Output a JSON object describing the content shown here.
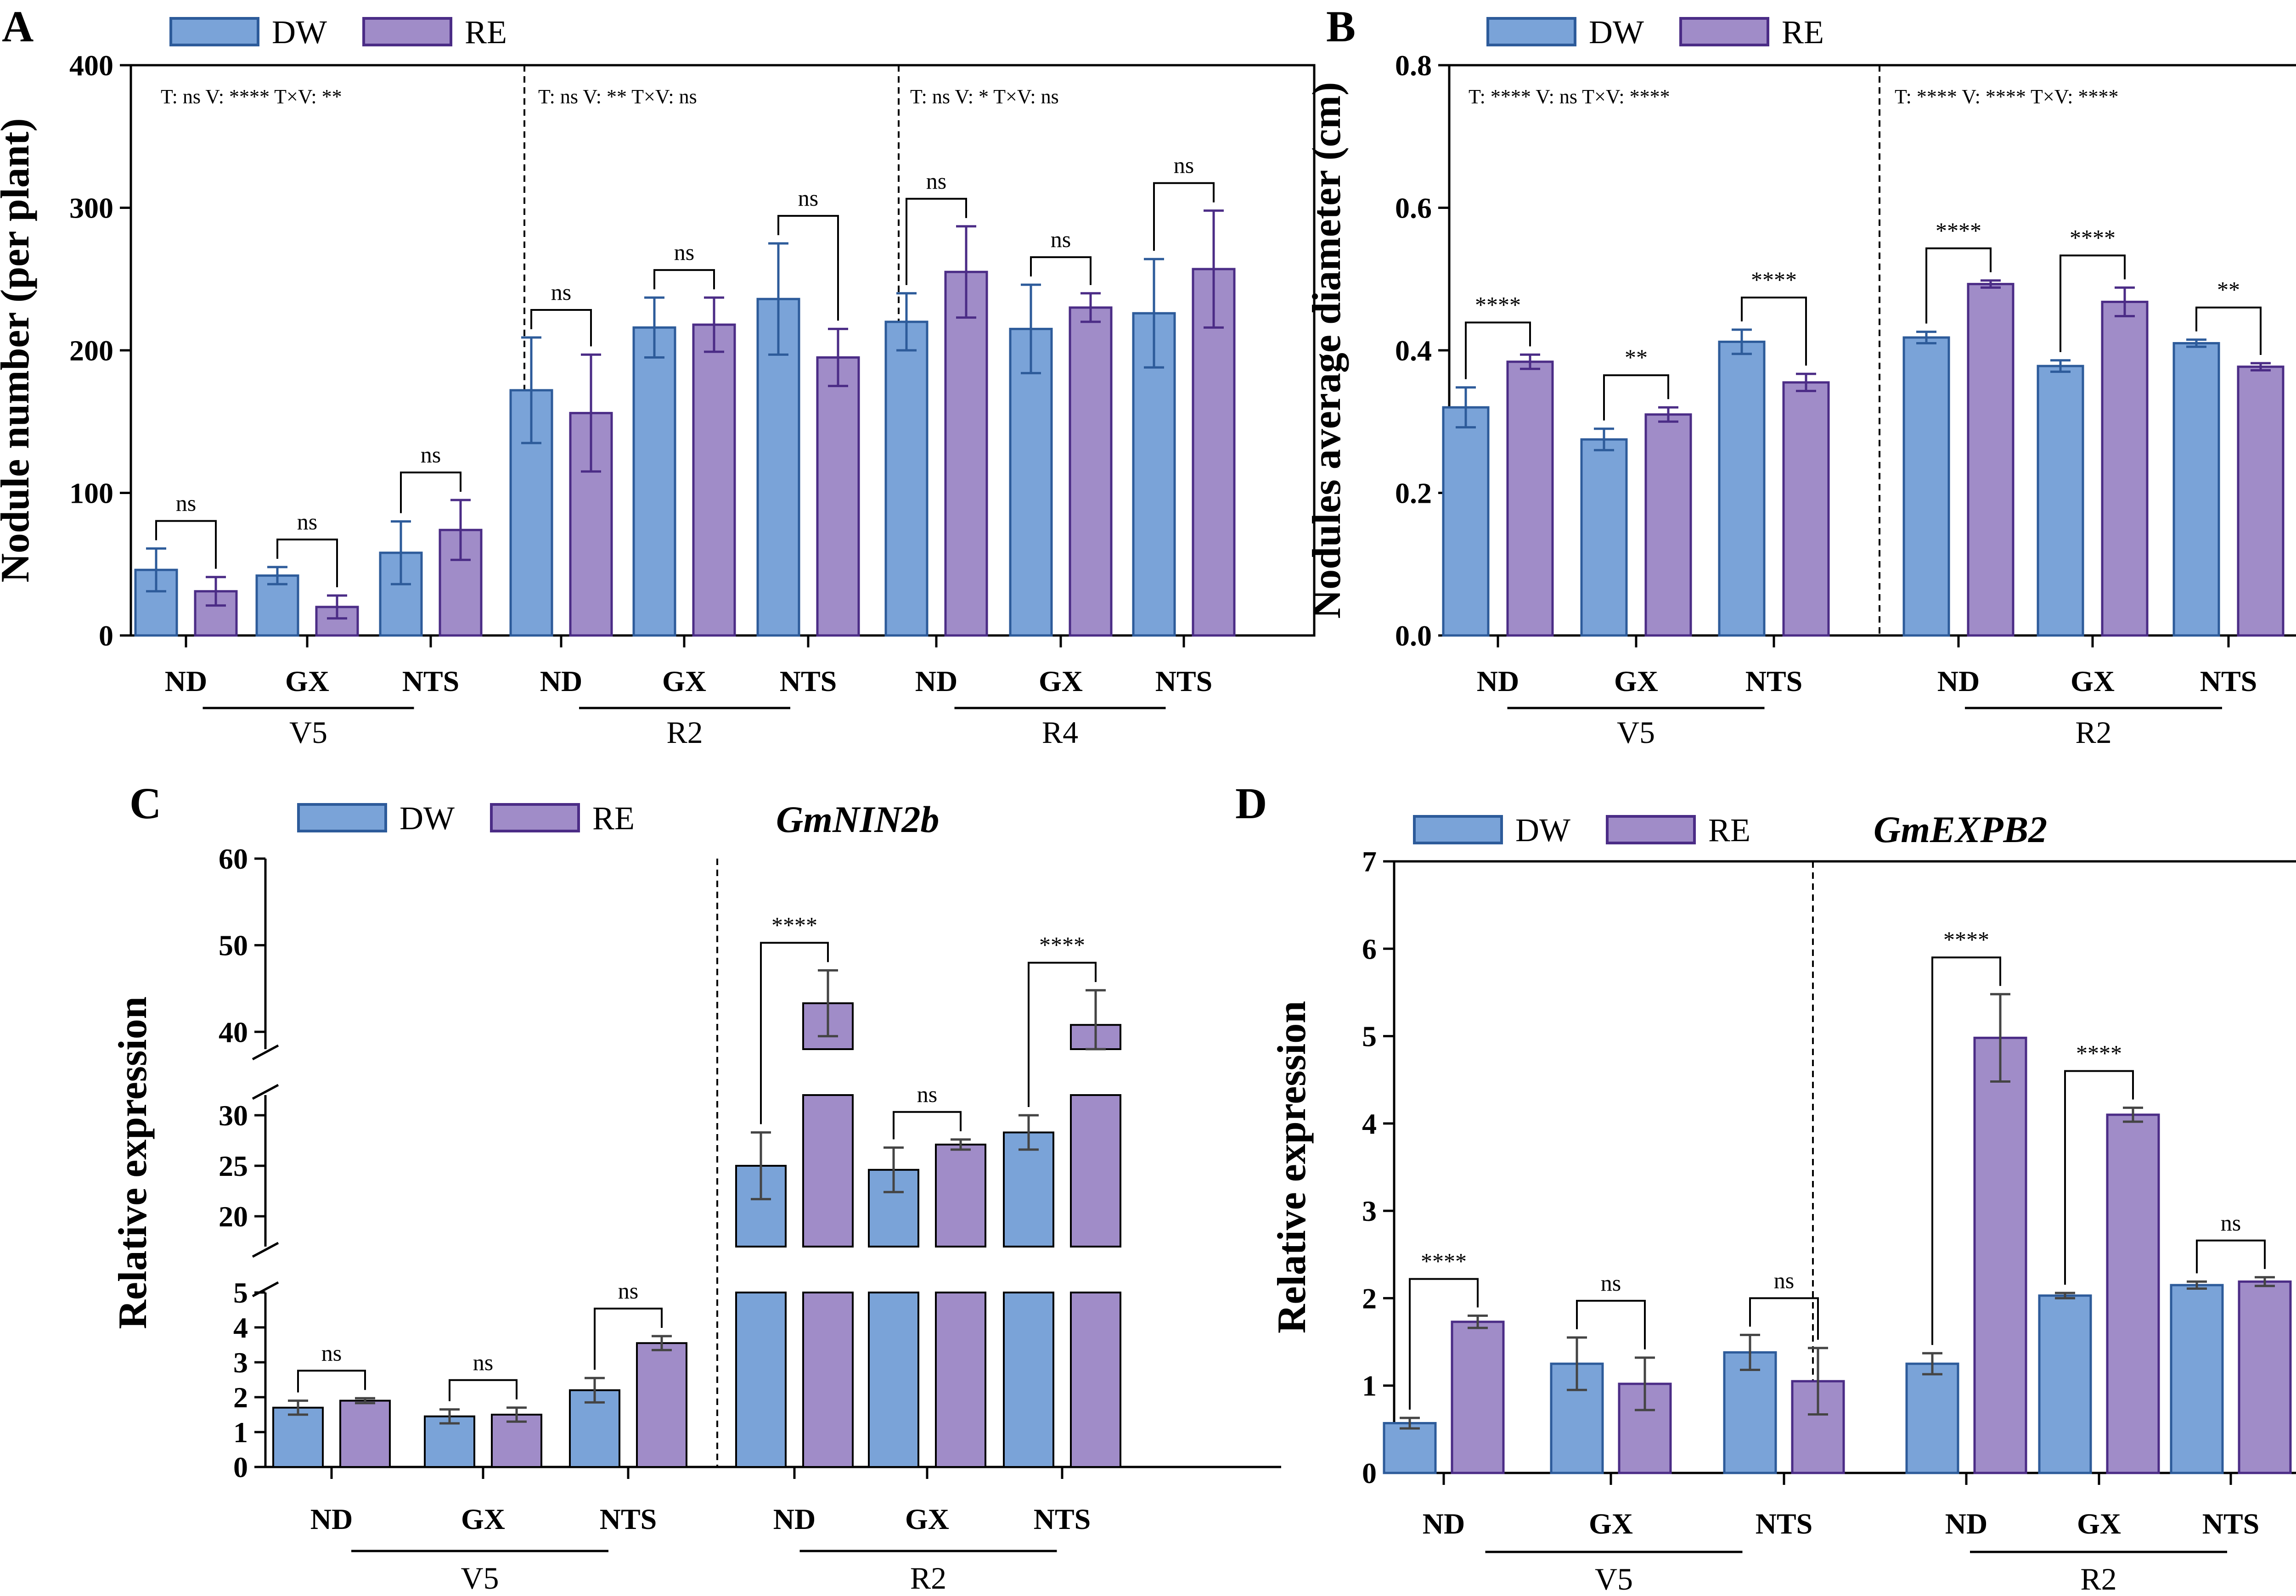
{
  "colors": {
    "DW": "#7aa3d8",
    "DW_edge": "#2d5b9a",
    "RE": "#a08cc8",
    "RE_edge": "#4b2c86",
    "error": "#444444"
  },
  "legend": [
    {
      "key": "DW",
      "label": "DW"
    },
    {
      "key": "RE",
      "label": "RE"
    }
  ],
  "panels": {
    "A": {
      "letter": "A"
    },
    "B": {
      "letter": "B"
    },
    "C": {
      "letter": "C",
      "gene": "GmNIN2b"
    },
    "D": {
      "letter": "D",
      "gene": "GmEXPB2"
    }
  },
  "chart_data": [
    {
      "panel": "A",
      "type": "bar",
      "title": "",
      "ylabel": "Nodule number (per plant)",
      "ylim": [
        0,
        400
      ],
      "yticks": [
        0,
        100,
        200,
        300,
        400
      ],
      "categories": [
        "ND",
        "GX",
        "NTS",
        "ND",
        "GX",
        "NTS",
        "ND",
        "GX",
        "NTS"
      ],
      "groups": [
        {
          "label": "V5",
          "categories": [
            "ND",
            "GX",
            "NTS"
          ],
          "stats": "T: ns V: **** T×V: **"
        },
        {
          "label": "R2",
          "categories": [
            "ND",
            "GX",
            "NTS"
          ],
          "stats": "T: ns V: ** T×V: ns"
        },
        {
          "label": "R4",
          "categories": [
            "ND",
            "GX",
            "NTS"
          ],
          "stats": "T: ns V: * T×V: ns"
        }
      ],
      "series": [
        {
          "name": "DW",
          "values": [
            46,
            42,
            58,
            172,
            216,
            236,
            220,
            215,
            226
          ],
          "errors": [
            15,
            6,
            22,
            37,
            21,
            39,
            20,
            31,
            38
          ]
        },
        {
          "name": "RE",
          "values": [
            31,
            20,
            74,
            156,
            218,
            195,
            255,
            230,
            257
          ],
          "errors": [
            10,
            8,
            21,
            41,
            19,
            20,
            32,
            10,
            41
          ]
        }
      ],
      "significance": [
        "ns",
        "ns",
        "ns",
        "ns",
        "ns",
        "ns",
        "ns",
        "ns",
        "ns"
      ]
    },
    {
      "panel": "B",
      "type": "bar",
      "title": "",
      "ylabel": "Nodules average diameter (cm)",
      "ylim": [
        0.0,
        0.8
      ],
      "yticks": [
        "0.0",
        "0.2",
        "0.4",
        "0.6",
        "0.8"
      ],
      "categories": [
        "ND",
        "GX",
        "NTS",
        "ND",
        "GX",
        "NTS"
      ],
      "groups": [
        {
          "label": "V5",
          "categories": [
            "ND",
            "GX",
            "NTS"
          ],
          "stats": "T: **** V: ns T×V: ****"
        },
        {
          "label": "R2",
          "categories": [
            "ND",
            "GX",
            "NTS"
          ],
          "stats": "T: **** V: **** T×V: ****"
        }
      ],
      "series": [
        {
          "name": "DW",
          "values": [
            0.32,
            0.275,
            0.412,
            0.418,
            0.378,
            0.41
          ],
          "errors": [
            0.028,
            0.015,
            0.017,
            0.008,
            0.008,
            0.005
          ]
        },
        {
          "name": "RE",
          "values": [
            0.384,
            0.31,
            0.355,
            0.493,
            0.468,
            0.377
          ],
          "errors": [
            0.01,
            0.01,
            0.012,
            0.005,
            0.02,
            0.005
          ]
        }
      ],
      "significance": [
        "****",
        "**",
        "****",
        "****",
        "****",
        "**"
      ]
    },
    {
      "panel": "C",
      "type": "bar",
      "title": "GmNIN2b",
      "ylabel": "Relative expression",
      "axis_breaks": [
        [
          5,
          17
        ],
        [
          32,
          38
        ]
      ],
      "yticks": [
        0,
        1,
        2,
        3,
        4,
        5,
        20,
        25,
        30,
        40,
        50,
        60
      ],
      "categories": [
        "ND",
        "GX",
        "NTS",
        "ND",
        "GX",
        "NTS"
      ],
      "groups": [
        {
          "label": "V5",
          "categories": [
            "ND",
            "GX",
            "NTS"
          ]
        },
        {
          "label": "R2",
          "categories": [
            "ND",
            "GX",
            "NTS"
          ]
        }
      ],
      "series": [
        {
          "name": "DW",
          "values": [
            1.7,
            1.45,
            2.2,
            25,
            24.6,
            28.3
          ],
          "errors": [
            0.2,
            0.2,
            0.35,
            3.3,
            2.2,
            1.7
          ]
        },
        {
          "name": "RE",
          "values": [
            1.9,
            1.5,
            3.55,
            43.3,
            27.1,
            40.8
          ],
          "errors": [
            0.07,
            0.2,
            0.2,
            3.8,
            0.5,
            4.0
          ]
        }
      ],
      "significance": [
        "ns",
        "ns",
        "ns",
        "****",
        "ns",
        "****"
      ]
    },
    {
      "panel": "D",
      "type": "bar",
      "title": "GmEXPB2",
      "ylabel": "Relative expression",
      "ylim": [
        0,
        7
      ],
      "yticks": [
        0,
        1,
        2,
        3,
        4,
        5,
        6,
        7
      ],
      "categories": [
        "ND",
        "GX",
        "NTS",
        "ND",
        "GX",
        "NTS"
      ],
      "groups": [
        {
          "label": "V5",
          "categories": [
            "ND",
            "GX",
            "NTS"
          ]
        },
        {
          "label": "R2",
          "categories": [
            "ND",
            "GX",
            "NTS"
          ]
        }
      ],
      "series": [
        {
          "name": "DW",
          "values": [
            0.57,
            1.25,
            1.38,
            1.25,
            2.03,
            2.15
          ],
          "errors": [
            0.06,
            0.3,
            0.2,
            0.12,
            0.03,
            0.04
          ]
        },
        {
          "name": "RE",
          "values": [
            1.73,
            1.02,
            1.05,
            4.98,
            4.1,
            2.19
          ],
          "errors": [
            0.07,
            0.3,
            0.38,
            0.5,
            0.08,
            0.05
          ]
        }
      ],
      "significance": [
        "****",
        "ns",
        "ns",
        "****",
        "****",
        "ns"
      ]
    }
  ]
}
